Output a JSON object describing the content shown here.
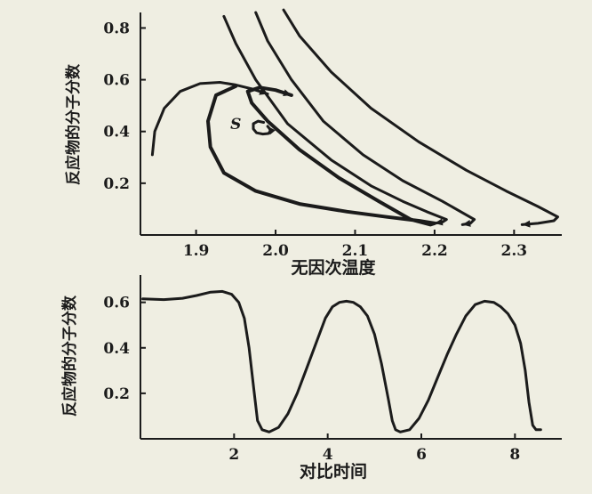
{
  "chart_data": [
    {
      "type": "line",
      "title": "",
      "xlabel": "无因次温度",
      "ylabel": "反应物的分子分数",
      "xlim": [
        1.83,
        2.36
      ],
      "ylim": [
        0,
        0.86
      ],
      "x_ticks": [
        1.9,
        2.0,
        2.1,
        2.2,
        2.3
      ],
      "x_tick_labels": [
        "1.9",
        "2.0",
        "2.1",
        "2.2",
        "2.3"
      ],
      "y_ticks": [
        0.2,
        0.4,
        0.6,
        0.8
      ],
      "y_tick_labels": [
        "0.2",
        "0.4",
        "0.6",
        "0.8"
      ],
      "grid": false,
      "annotations": [
        {
          "text": "S",
          "x": 1.95,
          "y": 0.41
        }
      ],
      "series": [
        {
          "x": [
            1.845,
            1.848,
            1.86,
            1.88,
            1.905,
            1.93,
            1.95,
            1.97,
            1.98,
            1.99
          ],
          "y": [
            0.31,
            0.4,
            0.49,
            0.555,
            0.585,
            0.59,
            0.58,
            0.565,
            0.555,
            0.545
          ]
        },
        {
          "x": [
            1.95,
            1.925,
            1.915,
            1.918,
            1.935,
            1.975,
            2.03,
            2.09,
            2.14,
            2.18,
            2.2,
            2.195,
            2.17,
            2.13,
            2.08,
            2.03,
            1.99,
            1.97,
            1.965,
            1.98,
            2.0,
            2.02
          ],
          "y": [
            0.575,
            0.54,
            0.44,
            0.34,
            0.24,
            0.17,
            0.12,
            0.09,
            0.07,
            0.055,
            0.045,
            0.04,
            0.06,
            0.13,
            0.22,
            0.33,
            0.44,
            0.51,
            0.555,
            0.57,
            0.56,
            0.54
          ]
        },
        {
          "x": [
            1.935,
            1.95,
            1.975,
            2.015,
            2.07,
            2.12,
            2.16,
            2.19,
            2.215,
            2.21,
            2.2
          ],
          "y": [
            0.845,
            0.74,
            0.6,
            0.43,
            0.29,
            0.19,
            0.13,
            0.09,
            0.06,
            0.05,
            0.045
          ]
        },
        {
          "x": [
            1.975,
            1.99,
            2.02,
            2.06,
            2.11,
            2.16,
            2.21,
            2.25,
            2.245,
            2.235
          ],
          "y": [
            0.86,
            0.75,
            0.6,
            0.44,
            0.31,
            0.21,
            0.13,
            0.06,
            0.045,
            0.04
          ]
        },
        {
          "x": [
            2.01,
            2.03,
            2.07,
            2.12,
            2.18,
            2.24,
            2.29,
            2.33,
            2.355,
            2.35,
            2.33,
            2.31
          ],
          "y": [
            0.87,
            0.77,
            0.63,
            0.49,
            0.36,
            0.25,
            0.17,
            0.11,
            0.07,
            0.055,
            0.045,
            0.04
          ]
        },
        {
          "x": [
            1.985,
            1.978,
            1.972,
            1.972,
            1.976,
            1.984,
            1.991,
            1.994,
            1.99
          ],
          "y": [
            0.435,
            0.44,
            0.43,
            0.41,
            0.395,
            0.39,
            0.392,
            0.405,
            0.42
          ]
        }
      ]
    },
    {
      "type": "line",
      "title": "",
      "xlabel": "对比时间",
      "ylabel": "反应物的分子分数",
      "xlim": [
        0,
        9
      ],
      "ylim": [
        0,
        0.72
      ],
      "x_ticks": [
        2,
        4,
        6,
        8
      ],
      "x_tick_labels": [
        "2",
        "4",
        "6",
        "8"
      ],
      "y_ticks": [
        0.2,
        0.4,
        0.6
      ],
      "y_tick_labels": [
        "0.2",
        "0.4",
        "0.6"
      ],
      "grid": false,
      "series": [
        {
          "x": [
            0.05,
            0.5,
            0.9,
            1.2,
            1.5,
            1.75,
            1.95,
            2.1,
            2.22,
            2.32,
            2.42,
            2.5,
            2.6,
            2.75,
            2.95,
            3.15,
            3.35,
            3.55,
            3.75,
            3.95,
            4.1,
            4.25,
            4.4,
            4.55,
            4.7,
            4.85,
            5.0,
            5.15,
            5.3,
            5.38,
            5.45,
            5.55,
            5.75,
            5.95,
            6.15,
            6.35,
            6.55,
            6.75,
            6.95,
            7.15,
            7.35,
            7.55,
            7.7,
            7.85,
            8.0,
            8.12,
            8.22,
            8.3,
            8.38,
            8.45,
            8.55
          ],
          "y": [
            0.615,
            0.612,
            0.618,
            0.63,
            0.645,
            0.648,
            0.635,
            0.6,
            0.53,
            0.4,
            0.22,
            0.08,
            0.04,
            0.03,
            0.05,
            0.11,
            0.2,
            0.31,
            0.42,
            0.53,
            0.58,
            0.6,
            0.605,
            0.6,
            0.58,
            0.54,
            0.46,
            0.33,
            0.17,
            0.08,
            0.04,
            0.03,
            0.04,
            0.09,
            0.17,
            0.27,
            0.37,
            0.46,
            0.54,
            0.59,
            0.605,
            0.6,
            0.58,
            0.55,
            0.5,
            0.42,
            0.3,
            0.16,
            0.06,
            0.04,
            0.04
          ]
        }
      ]
    }
  ]
}
